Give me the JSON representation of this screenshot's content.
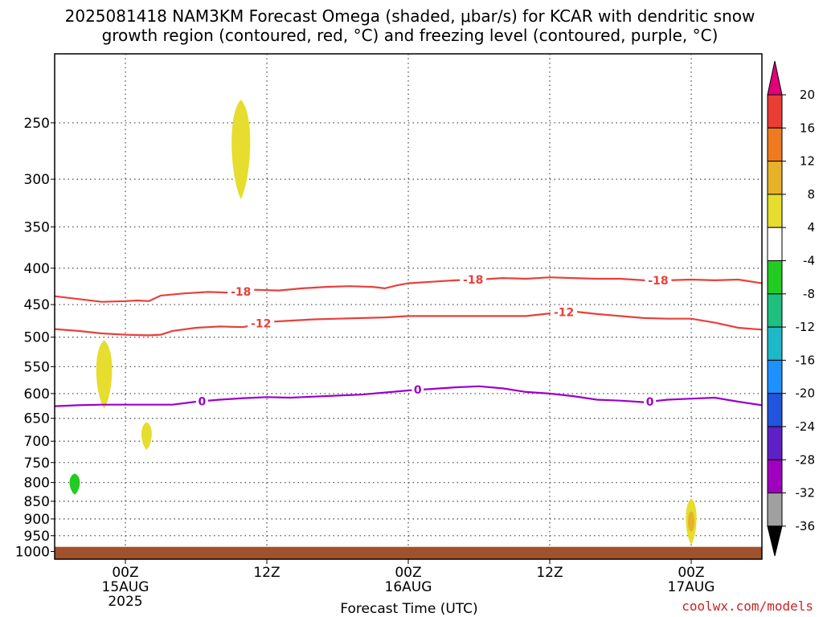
{
  "title_line1": "2025081418 NAM3KM Forecast Omega (shaded, μbar/s) for KCAR with dendritic snow",
  "title_line2": "growth region (contoured, red, °C) and freezing level (contoured, purple, °C)",
  "xlabel": "Forecast Time (UTC)",
  "credit": "coolwx.com/models",
  "chart_data": {
    "type": "heatmap",
    "title": "2025081418 NAM3KM Forecast Omega (shaded, μbar/s) for KCAR with dendritic snow growth region (contoured, red, °C) and freezing level (contoured, purple, °C)",
    "xlabel": "Forecast Time (UTC)",
    "ylabel": "",
    "x_range_hours": [
      -6,
      54
    ],
    "y_axis": "pressure (hPa), log scale, inverted",
    "y_range": [
      1025,
      200
    ],
    "y_ticks": [
      250,
      300,
      350,
      400,
      450,
      500,
      550,
      600,
      650,
      700,
      750,
      800,
      850,
      900,
      950,
      1000
    ],
    "x_ticks": [
      {
        "hour": 0,
        "lines": [
          "00Z",
          "15AUG",
          "2025"
        ]
      },
      {
        "hour": 12,
        "lines": [
          "12Z"
        ]
      },
      {
        "hour": 24,
        "lines": [
          "00Z",
          "16AUG"
        ]
      },
      {
        "hour": 36,
        "lines": [
          "12Z"
        ]
      },
      {
        "hour": 48,
        "lines": [
          "00Z",
          "17AUG"
        ]
      }
    ],
    "grid": true,
    "contours": [
      {
        "label": "-18",
        "color": "#e8403a",
        "label_hours": [
          9.8,
          29.5,
          45.2
        ],
        "points": [
          [
            -6,
            438
          ],
          [
            -4,
            442
          ],
          [
            -2,
            446
          ],
          [
            0,
            445
          ],
          [
            1,
            444
          ],
          [
            2,
            445
          ],
          [
            3,
            437
          ],
          [
            5,
            434
          ],
          [
            7,
            432
          ],
          [
            9,
            433
          ],
          [
            11,
            429
          ],
          [
            13,
            430
          ],
          [
            15,
            427
          ],
          [
            17,
            425
          ],
          [
            19,
            424
          ],
          [
            21,
            425
          ],
          [
            22,
            427
          ],
          [
            23,
            423
          ],
          [
            24,
            420
          ],
          [
            26,
            418
          ],
          [
            28,
            416
          ],
          [
            30,
            415
          ],
          [
            32,
            413
          ],
          [
            34,
            414
          ],
          [
            36,
            412
          ],
          [
            38,
            413
          ],
          [
            40,
            414
          ],
          [
            42,
            414
          ],
          [
            44,
            416
          ],
          [
            46,
            416
          ],
          [
            48,
            415
          ],
          [
            50,
            416
          ],
          [
            52,
            415
          ],
          [
            54,
            420
          ]
        ]
      },
      {
        "label": "-12",
        "color": "#e8403a",
        "label_hours": [
          11.5,
          37.2
        ],
        "points": [
          [
            -6,
            487
          ],
          [
            -4,
            490
          ],
          [
            -2,
            494
          ],
          [
            0,
            496
          ],
          [
            2,
            497
          ],
          [
            3,
            496
          ],
          [
            4,
            490
          ],
          [
            6,
            485
          ],
          [
            8,
            483
          ],
          [
            10,
            484
          ],
          [
            12,
            476
          ],
          [
            14,
            474
          ],
          [
            16,
            472
          ],
          [
            18,
            471
          ],
          [
            20,
            470
          ],
          [
            22,
            469
          ],
          [
            24,
            467
          ],
          [
            26,
            467
          ],
          [
            28,
            467
          ],
          [
            30,
            467
          ],
          [
            32,
            467
          ],
          [
            34,
            467
          ],
          [
            36,
            463
          ],
          [
            38,
            460
          ],
          [
            40,
            464
          ],
          [
            42,
            467
          ],
          [
            44,
            470
          ],
          [
            46,
            471
          ],
          [
            48,
            471
          ],
          [
            50,
            477
          ],
          [
            52,
            485
          ],
          [
            54,
            488
          ]
        ]
      },
      {
        "label": "0",
        "color": "#9b00cc",
        "label_hours": [
          6.5,
          24.8,
          44.5
        ],
        "points": [
          [
            -6,
            625
          ],
          [
            -4,
            623
          ],
          [
            -2,
            622
          ],
          [
            0,
            622
          ],
          [
            2,
            622
          ],
          [
            4,
            622
          ],
          [
            6,
            616
          ],
          [
            8,
            612
          ],
          [
            10,
            609
          ],
          [
            12,
            607
          ],
          [
            14,
            608
          ],
          [
            16,
            606
          ],
          [
            18,
            604
          ],
          [
            20,
            602
          ],
          [
            22,
            598
          ],
          [
            24,
            594
          ],
          [
            26,
            591
          ],
          [
            28,
            588
          ],
          [
            30,
            586
          ],
          [
            32,
            590
          ],
          [
            34,
            597
          ],
          [
            36,
            600
          ],
          [
            38,
            605
          ],
          [
            40,
            612
          ],
          [
            42,
            614
          ],
          [
            44,
            617
          ],
          [
            46,
            612
          ],
          [
            48,
            610
          ],
          [
            50,
            608
          ],
          [
            52,
            616
          ],
          [
            54,
            623
          ]
        ]
      }
    ],
    "omega_blobs": [
      {
        "value_range": "4 to 8",
        "color": "#e6dd2e",
        "center_hour": 9.8,
        "p_top": 232,
        "p_bottom": 320
      },
      {
        "value_range": "4 to 8",
        "color": "#e6dd2e",
        "center_hour": -1.8,
        "p_top": 505,
        "p_bottom": 630
      },
      {
        "value_range": "4 to 8",
        "color": "#e6dd2e",
        "center_hour": 1.8,
        "p_top": 658,
        "p_bottom": 720
      },
      {
        "value_range": "-8 to -4",
        "color": "#22cc22",
        "center_hour": -4.3,
        "p_top": 777,
        "p_bottom": 832
      },
      {
        "value_range": "4 to 12",
        "color": "#e6dd2e",
        "center_hour": 48.0,
        "p_top": 842,
        "p_bottom": 978
      }
    ],
    "ground": {
      "color": "#a0522d",
      "p_top": 985
    },
    "colorbar": {
      "labels": [
        "20",
        "16",
        "12",
        "8",
        "4",
        "-4",
        "-8",
        "-12",
        "-16",
        "-20",
        "-24",
        "-28",
        "-32",
        "-36"
      ],
      "colors": [
        "#e0007a",
        "#ea3d33",
        "#f07a20",
        "#e6b22a",
        "#e6dd2e",
        "#ffffff",
        "#22cc22",
        "#1fbf80",
        "#1fb8c8",
        "#1e90ff",
        "#2255dd",
        "#6020c8",
        "#a000c0",
        "#a0a0a0",
        "#000000"
      ]
    }
  }
}
